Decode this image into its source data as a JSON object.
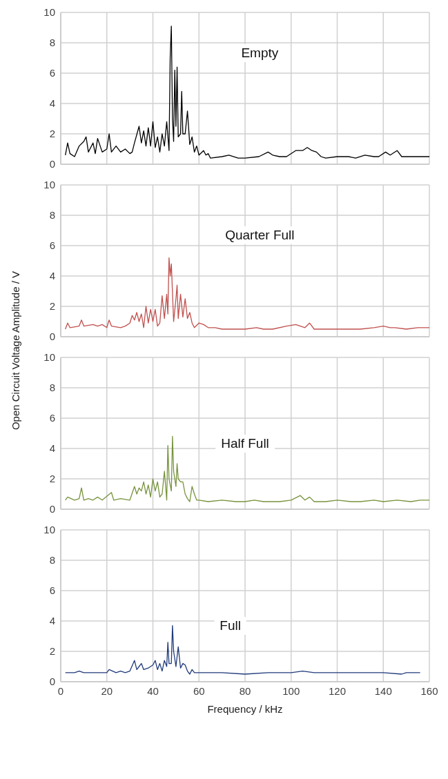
{
  "chart_data": [
    {
      "type": "line",
      "annotations": [
        "Empty"
      ],
      "xlim": [
        0,
        160
      ],
      "xticks": [
        0,
        20,
        40,
        60,
        80,
        100,
        120,
        140,
        160
      ],
      "ylim": [
        0,
        10
      ],
      "yticks": [
        0,
        2,
        4,
        6,
        8,
        10
      ],
      "grid": true,
      "tick_labels": "y",
      "marker": "none",
      "line_style": "solid",
      "series": [
        {
          "color": "#000000",
          "x": [
            2,
            3,
            4,
            6,
            8,
            10,
            11,
            12,
            14,
            15,
            16,
            18,
            20,
            21,
            22,
            24,
            26,
            28,
            30,
            31,
            32,
            34,
            35,
            36,
            37,
            38,
            39,
            40,
            41,
            42,
            43,
            44,
            45,
            46,
            47,
            47.5,
            48,
            48.5,
            49,
            49.5,
            50,
            50.5,
            51,
            52,
            52.5,
            53,
            54,
            55,
            56,
            57,
            58,
            59,
            60,
            62,
            63,
            64,
            65,
            70,
            73,
            77,
            80,
            86,
            90,
            92,
            95,
            98,
            102,
            105,
            107,
            109,
            111,
            113,
            115,
            120,
            125,
            128,
            132,
            136,
            138,
            141,
            143,
            146,
            148,
            150,
            155,
            160
          ],
          "values": [
            0.6,
            1.4,
            0.7,
            0.5,
            1.2,
            1.5,
            1.8,
            0.8,
            1.4,
            0.7,
            1.7,
            0.8,
            1.0,
            2.0,
            0.8,
            1.2,
            0.8,
            1.0,
            0.7,
            0.8,
            1.4,
            2.5,
            1.4,
            2.2,
            1.2,
            2.4,
            1.2,
            2.8,
            1.1,
            1.8,
            0.8,
            2.0,
            1.2,
            2.8,
            0.9,
            7.0,
            9.1,
            3.0,
            1.5,
            6.2,
            2.5,
            6.4,
            1.8,
            2.0,
            4.8,
            2.0,
            2.0,
            3.5,
            1.3,
            1.8,
            0.8,
            1.2,
            0.6,
            0.9,
            0.6,
            0.7,
            0.4,
            0.5,
            0.6,
            0.4,
            0.4,
            0.5,
            0.8,
            0.6,
            0.5,
            0.5,
            0.9,
            0.9,
            1.1,
            0.9,
            0.8,
            0.5,
            0.4,
            0.5,
            0.5,
            0.4,
            0.6,
            0.5,
            0.5,
            0.8,
            0.6,
            0.9,
            0.5,
            0.5,
            0.5,
            0.5
          ]
        }
      ]
    },
    {
      "type": "line",
      "annotations": [
        "Quarter Full"
      ],
      "xlim": [
        0,
        160
      ],
      "xticks": [
        0,
        20,
        40,
        60,
        80,
        100,
        120,
        140,
        160
      ],
      "ylim": [
        0,
        10
      ],
      "yticks": [
        0,
        2,
        4,
        6,
        8,
        10
      ],
      "grid": true,
      "tick_labels": "y",
      "marker": "none",
      "line_style": "solid",
      "series": [
        {
          "color": "#c0504d",
          "x": [
            2,
            3,
            4,
            8,
            9,
            10,
            14,
            16,
            18,
            20,
            21,
            22,
            26,
            28,
            30,
            31,
            32,
            33,
            34,
            35,
            36,
            37,
            38,
            39,
            40,
            41,
            42,
            43,
            44,
            45,
            46,
            46.5,
            47,
            47.5,
            48,
            49,
            50,
            50.5,
            51,
            52,
            53,
            54,
            55,
            56,
            57,
            58,
            60,
            62,
            64,
            67,
            70,
            75,
            80,
            85,
            88,
            92,
            98,
            102,
            104,
            106,
            108,
            110,
            115,
            120,
            125,
            130,
            136,
            140,
            143,
            145,
            150,
            155,
            160
          ],
          "values": [
            0.5,
            0.9,
            0.6,
            0.7,
            1.1,
            0.7,
            0.8,
            0.7,
            0.8,
            0.6,
            1.1,
            0.7,
            0.6,
            0.7,
            0.9,
            1.4,
            1.1,
            1.6,
            1.0,
            1.5,
            0.6,
            2.0,
            0.9,
            1.8,
            1.0,
            1.8,
            0.7,
            0.9,
            2.7,
            1.2,
            2.8,
            1.5,
            5.2,
            4.0,
            4.8,
            1.0,
            2.5,
            3.4,
            1.2,
            2.8,
            1.3,
            2.5,
            1.2,
            1.6,
            0.9,
            0.6,
            0.9,
            0.8,
            0.6,
            0.6,
            0.5,
            0.5,
            0.5,
            0.6,
            0.5,
            0.5,
            0.7,
            0.8,
            0.7,
            0.6,
            0.9,
            0.5,
            0.5,
            0.5,
            0.5,
            0.5,
            0.6,
            0.7,
            0.6,
            0.6,
            0.5,
            0.6,
            0.6
          ]
        }
      ]
    },
    {
      "type": "line",
      "ylabel": "Open Circuit Voltage Amplitude / V",
      "annotations": [
        "Half Full"
      ],
      "xlim": [
        0,
        160
      ],
      "xticks": [
        0,
        20,
        40,
        60,
        80,
        100,
        120,
        140,
        160
      ],
      "ylim": [
        0,
        10
      ],
      "yticks": [
        0,
        2,
        4,
        6,
        8,
        10
      ],
      "grid": true,
      "tick_labels": "y",
      "marker": "none",
      "line_style": "solid",
      "series": [
        {
          "color": "#77933c",
          "x": [
            2,
            3,
            6,
            8,
            9,
            10,
            12,
            14,
            16,
            18,
            22,
            23,
            26,
            30,
            32,
            33,
            34,
            35,
            36,
            37,
            38,
            39,
            40,
            41,
            42,
            43,
            44,
            45,
            46,
            46.5,
            47,
            48,
            48.5,
            49,
            50,
            50.5,
            51,
            52,
            53,
            54,
            55,
            56,
            57,
            58,
            59,
            60,
            64,
            70,
            76,
            80,
            84,
            88,
            95,
            100,
            104,
            106,
            108,
            110,
            115,
            120,
            126,
            130,
            136,
            140,
            146,
            152,
            156,
            160
          ],
          "values": [
            0.6,
            0.8,
            0.6,
            0.7,
            1.4,
            0.6,
            0.7,
            0.6,
            0.8,
            0.6,
            1.1,
            0.6,
            0.7,
            0.6,
            1.5,
            1.0,
            1.4,
            1.2,
            1.8,
            1.0,
            1.6,
            0.8,
            2.0,
            1.2,
            1.8,
            0.8,
            1.0,
            2.5,
            0.6,
            4.2,
            2.0,
            1.2,
            4.8,
            2.5,
            1.5,
            3.0,
            2.0,
            1.8,
            1.8,
            1.0,
            0.7,
            0.5,
            1.5,
            1.0,
            0.6,
            0.6,
            0.5,
            0.6,
            0.5,
            0.5,
            0.6,
            0.5,
            0.5,
            0.6,
            0.9,
            0.6,
            0.8,
            0.5,
            0.5,
            0.6,
            0.5,
            0.5,
            0.6,
            0.5,
            0.6,
            0.5,
            0.6,
            0.6
          ]
        }
      ]
    },
    {
      "type": "line",
      "annotations": [
        "Full"
      ],
      "xlabel": "Frequency / kHz",
      "xlim": [
        0,
        160
      ],
      "xticks": [
        0,
        20,
        40,
        60,
        80,
        100,
        120,
        140,
        160
      ],
      "ylim": [
        0,
        10
      ],
      "yticks": [
        0,
        2,
        4,
        6,
        8,
        10
      ],
      "grid": true,
      "marker": "none",
      "line_style": "solid",
      "series": [
        {
          "color": "#1f3a7a",
          "x": [
            2,
            6,
            8,
            10,
            14,
            20,
            21,
            24,
            26,
            28,
            30,
            32,
            33,
            34,
            35,
            36,
            38,
            40,
            41,
            42,
            43,
            44,
            45,
            46,
            46.5,
            47,
            48,
            48.5,
            49,
            50,
            51,
            52,
            53,
            54,
            55,
            56,
            57,
            58,
            60,
            70,
            80,
            90,
            100,
            105,
            110,
            120,
            130,
            140,
            148,
            150,
            156
          ],
          "values": [
            0.6,
            0.6,
            0.7,
            0.6,
            0.6,
            0.6,
            0.8,
            0.6,
            0.7,
            0.6,
            0.7,
            1.4,
            0.8,
            1.0,
            1.2,
            0.8,
            0.9,
            1.1,
            1.4,
            0.8,
            1.2,
            0.7,
            1.4,
            1.0,
            2.6,
            1.2,
            1.2,
            3.7,
            2.0,
            1.0,
            2.3,
            0.9,
            1.2,
            1.1,
            0.7,
            0.5,
            0.8,
            0.6,
            0.6,
            0.6,
            0.5,
            0.6,
            0.6,
            0.7,
            0.6,
            0.6,
            0.6,
            0.6,
            0.5,
            0.6,
            0.6
          ]
        }
      ]
    }
  ]
}
